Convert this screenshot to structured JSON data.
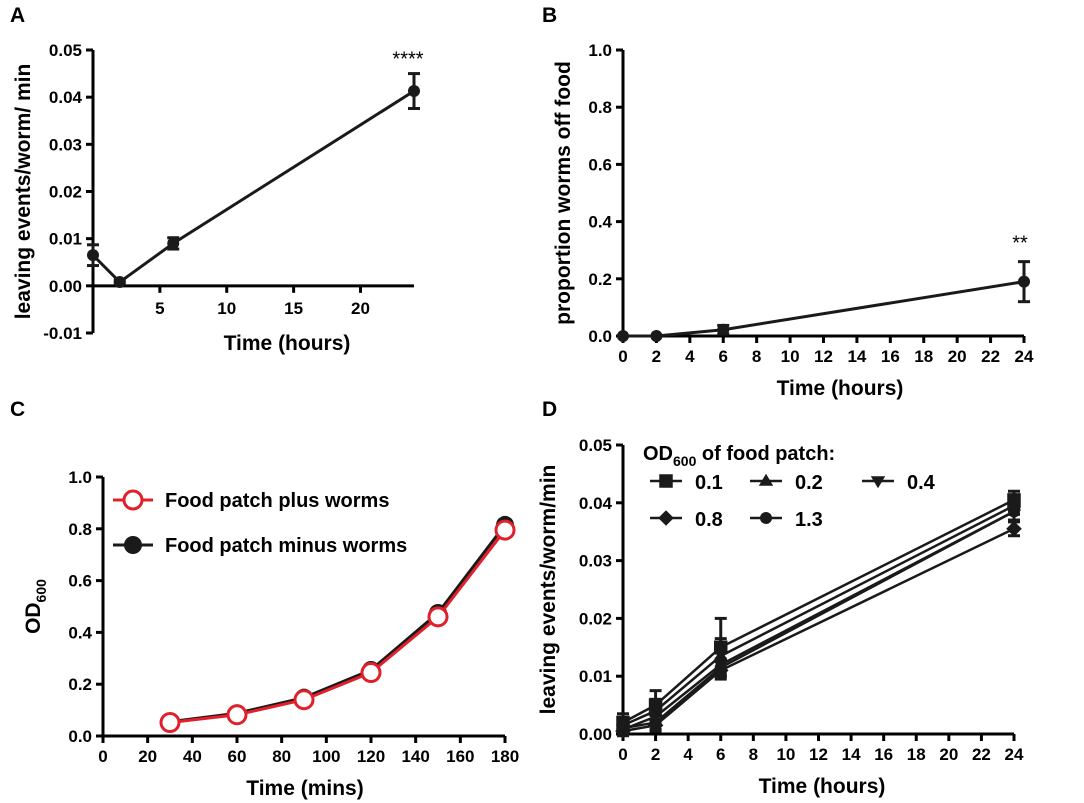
{
  "chart_data": [
    {
      "panel": "A",
      "type": "line",
      "xlabel": "Time (hours)",
      "ylabel": "leaving events/worm/ min",
      "xticks": [
        5,
        10,
        15,
        20
      ],
      "yticks": [
        -0.01,
        0.0,
        0.01,
        0.02,
        0.03,
        0.04,
        0.05
      ],
      "ytick_labels": [
        "-0.01",
        "0.00",
        "0.01",
        "0.02",
        "0.03",
        "0.04",
        "0.05"
      ],
      "xlim": [
        0,
        24
      ],
      "ylim": [
        -0.01,
        0.05
      ],
      "series": [
        {
          "x": [
            0,
            2,
            6,
            24
          ],
          "y": [
            0.0065,
            0.0008,
            0.009,
            0.0413
          ],
          "err": [
            0.0022,
            0.0004,
            0.0012,
            0.0037
          ],
          "color": "#1a1a1a"
        }
      ],
      "annotation": "****"
    },
    {
      "panel": "B",
      "type": "line",
      "xlabel": "Time (hours)",
      "ylabel": "proportion worms off food",
      "xticks": [
        0,
        2,
        4,
        6,
        8,
        10,
        12,
        14,
        16,
        18,
        20,
        22,
        24
      ],
      "yticks": [
        0.0,
        0.2,
        0.4,
        0.6,
        0.8,
        1.0
      ],
      "ytick_labels": [
        "0.0",
        "0.2",
        "0.4",
        "0.6",
        "0.8",
        "1.0"
      ],
      "xlim": [
        0,
        24
      ],
      "ylim": [
        0,
        1
      ],
      "series": [
        {
          "x": [
            0,
            2,
            6,
            24
          ],
          "y": [
            0.0,
            0.0,
            0.022,
            0.19
          ],
          "err": [
            0.0,
            0.0,
            0.015,
            0.07
          ],
          "color": "#1a1a1a"
        }
      ],
      "annotation": "**"
    },
    {
      "panel": "C",
      "type": "line",
      "xlabel": "Time (mins)",
      "ylabel": "OD",
      "ylabel_sub": "600",
      "xticks": [
        0,
        20,
        40,
        60,
        80,
        100,
        120,
        140,
        160,
        180
      ],
      "yticks": [
        0.0,
        0.2,
        0.4,
        0.6,
        0.8,
        1.0
      ],
      "ytick_labels": [
        "0.0",
        "0.2",
        "0.4",
        "0.6",
        "0.8",
        "1.0"
      ],
      "xlim": [
        0,
        180
      ],
      "ylim": [
        0,
        1
      ],
      "legend": "top-left",
      "series": [
        {
          "name": "Food patch plus worms",
          "x": [
            30,
            60,
            90,
            120,
            150,
            180
          ],
          "y": [
            0.052,
            0.082,
            0.14,
            0.245,
            0.46,
            0.795
          ],
          "color": "#e0202a",
          "marker": "open-circle"
        },
        {
          "name": "Food patch minus worms",
          "x": [
            30,
            60,
            90,
            120,
            150,
            180
          ],
          "y": [
            0.055,
            0.088,
            0.148,
            0.255,
            0.475,
            0.815
          ],
          "color": "#1a1a1a",
          "marker": "filled-circle"
        }
      ]
    },
    {
      "panel": "D",
      "type": "line",
      "xlabel": "Time (hours)",
      "ylabel": "leaving events/worm/min",
      "xticks": [
        0,
        2,
        4,
        6,
        8,
        10,
        12,
        14,
        16,
        18,
        20,
        22,
        24
      ],
      "yticks": [
        0.0,
        0.01,
        0.02,
        0.03,
        0.04,
        0.05
      ],
      "ytick_labels": [
        "0.00",
        "0.01",
        "0.02",
        "0.03",
        "0.04",
        "0.05"
      ],
      "xlim": [
        0,
        24
      ],
      "ylim": [
        0,
        0.05
      ],
      "legend_title": "OD",
      "legend_title_sub": "600",
      "legend_title_suffix": " of food patch:",
      "legend": "top-left",
      "series": [
        {
          "name": "0.1",
          "marker": "square",
          "x": [
            0,
            2,
            6,
            24
          ],
          "y": [
            0.002,
            0.005,
            0.015,
            0.0405
          ],
          "err": [
            0.0015,
            0.0025,
            0.005,
            0.0015
          ],
          "color": "#1a1a1a"
        },
        {
          "name": "0.2",
          "marker": "triangle-up",
          "x": [
            0,
            2,
            6,
            24
          ],
          "y": [
            0.0015,
            0.004,
            0.0135,
            0.0395
          ],
          "err": [
            0.001,
            0.002,
            0.003,
            0.0015
          ],
          "color": "#1a1a1a"
        },
        {
          "name": "0.4",
          "marker": "triangle-down",
          "x": [
            0,
            2,
            6,
            24
          ],
          "y": [
            0.0008,
            0.003,
            0.012,
            0.0385
          ],
          "err": [
            0.001,
            0.0015,
            0.002,
            0.0015
          ],
          "color": "#1a1a1a"
        },
        {
          "name": "0.8",
          "marker": "diamond",
          "x": [
            0,
            2,
            6,
            24
          ],
          "y": [
            0.0005,
            0.0015,
            0.011,
            0.0355
          ],
          "err": [
            0.0008,
            0.001,
            0.0015,
            0.0012
          ],
          "color": "#1a1a1a"
        },
        {
          "name": "1.3",
          "marker": "circle",
          "x": [
            0,
            2,
            6,
            24
          ],
          "y": [
            0.001,
            0.002,
            0.0115,
            0.0385
          ],
          "err": [
            0.0008,
            0.0012,
            0.0015,
            0.0015
          ],
          "color": "#1a1a1a"
        }
      ]
    }
  ]
}
